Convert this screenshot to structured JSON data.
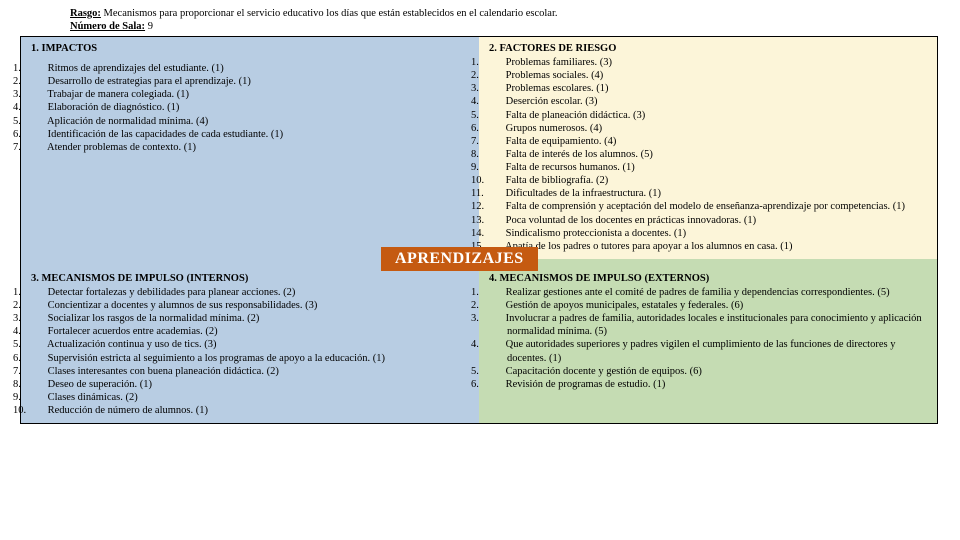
{
  "header": {
    "rasgo_label": "Rasgo:",
    "rasgo_text": " Mecanismos para proporcionar el servicio educativo los días que están establecidos en el calendario escolar.",
    "sala_label": "Número de Sala:",
    "sala_value": " 9"
  },
  "banner": "APRENDIZAJES",
  "colors": {
    "q1_bg": "#b8cde3",
    "q2_bg": "#fcf5d9",
    "q3_bg": "#b8cde3",
    "q4_bg": "#c5dcb3",
    "banner_bg": "#c55a11",
    "banner_fg": "#ffffff",
    "page_bg": "#ffffff",
    "text": "#000000",
    "border": "#000000"
  },
  "q1": {
    "title": "1. IMPACTOS",
    "items": [
      "Ritmos de aprendizajes del estudiante. (1)",
      "Desarrollo de estrategias para el aprendizaje. (1)",
      "Trabajar de manera colegiada. (1)",
      "Elaboración de diagnóstico. (1)",
      "Aplicación de normalidad mínima. (4)",
      "Identificación de las capacidades de cada estudiante. (1)",
      "Atender problemas de contexto. (1)"
    ]
  },
  "q2": {
    "title": "2. FACTORES DE RIESGO",
    "items": [
      "Problemas familiares. (3)",
      "Problemas sociales. (4)",
      "Problemas escolares. (1)",
      "Deserción escolar. (3)",
      "Falta de planeación didáctica. (3)",
      "Grupos numerosos. (4)",
      "Falta de equipamiento. (4)",
      "Falta de interés de los alumnos. (5)",
      "Falta de recursos humanos. (1)",
      "Falta de bibliografía. (2)",
      "Dificultades de la infraestructura. (1)",
      "Falta de comprensión y aceptación del modelo de  enseñanza-aprendizaje por competencias. (1)",
      "Poca voluntad de los docentes en prácticas innovadoras. (1)",
      "Sindicalismo proteccionista a docentes. (1)",
      "Apatía de los padres o tutores para apoyar a los alumnos en casa. (1)"
    ]
  },
  "q3": {
    "title": "3. MECANISMOS DE IMPULSO (INTERNOS)",
    "items": [
      "Detectar fortalezas y debilidades para planear acciones. (2)",
      "Concientizar a docentes y alumnos de sus responsabilidades. (3)",
      "Socializar los rasgos de la normalidad mínima. (2)",
      "Fortalecer acuerdos entre academias. (2)",
      "Actualización continua y uso de tics. (3)",
      "Supervisión estricta al seguimiento a los programas de apoyo a la educación. (1)",
      "Clases interesantes con buena planeación didáctica. (2)",
      "Deseo de superación. (1)",
      "Clases dinámicas. (2)",
      "Reducción de número de alumnos. (1)"
    ]
  },
  "q4": {
    "title": "4. MECANISMOS DE IMPULSO (EXTERNOS)",
    "items": [
      "Realizar gestiones ante el comité de padres de familia y dependencias correspondientes. (5)",
      "Gestión de apoyos municipales, estatales y federales. (6)",
      "Involucrar a padres de familia, autoridades locales e institucionales para conocimiento y aplicación normalidad mínima. (5)",
      "Que autoridades superiores y padres vigilen el cumplimiento de las funciones de directores y docentes. (1)",
      "Capacitación docente y gestión de equipos. (6)",
      "Revisión de programas de estudio. (1)"
    ]
  }
}
